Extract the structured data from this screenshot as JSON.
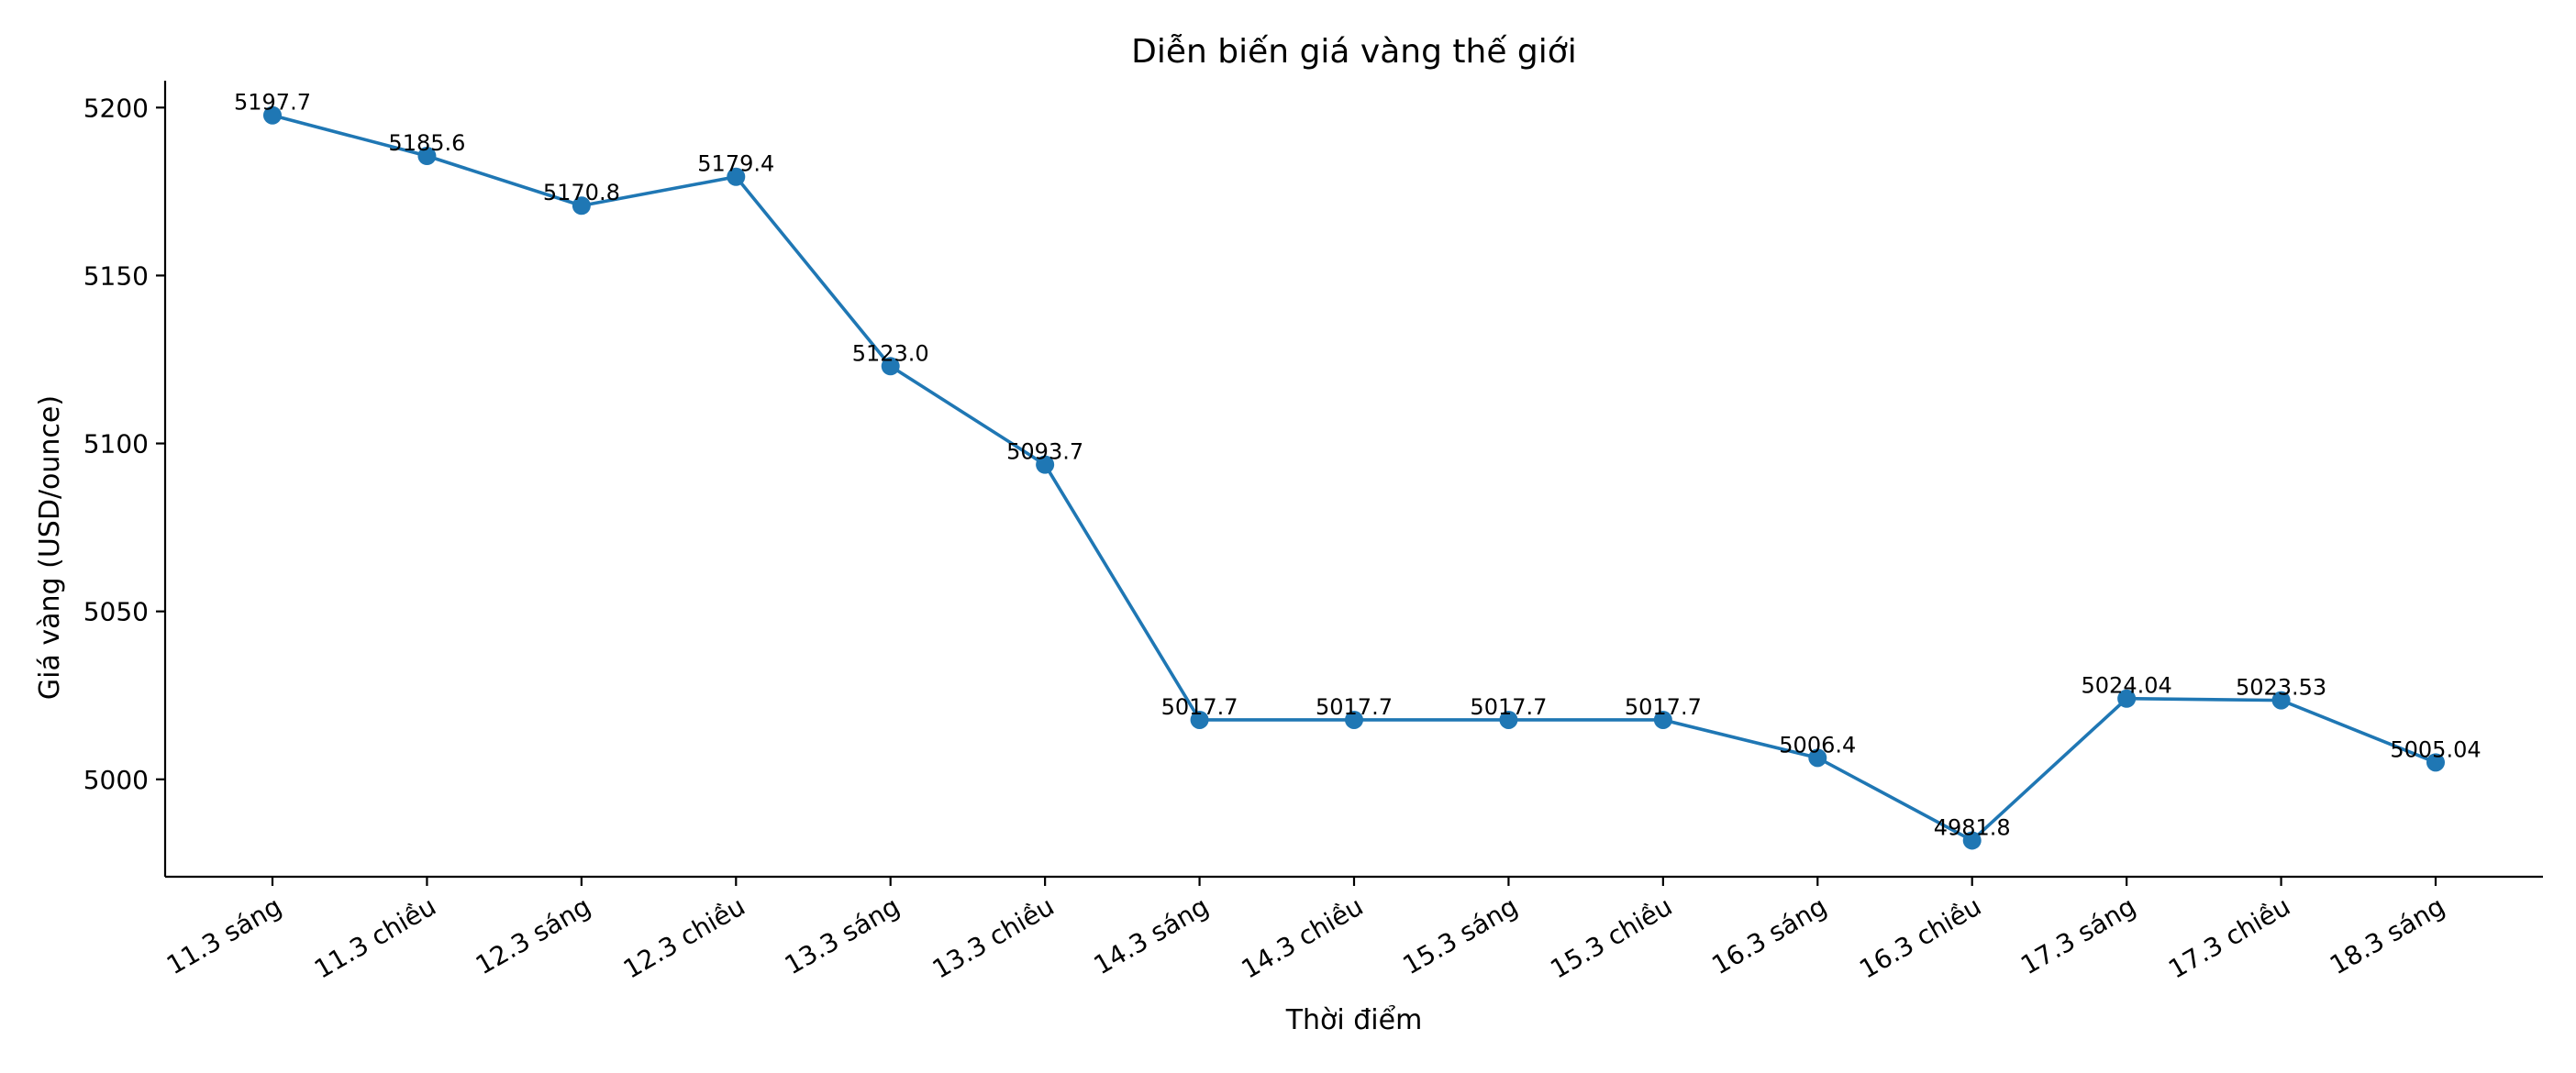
{
  "chart_data": {
    "type": "line",
    "title": "Diễn biến giá vàng thế giới",
    "xlabel": "Thời điểm",
    "ylabel": "Giá vàng (USD/ounce)",
    "categories": [
      "11.3 sáng",
      "11.3 chiều",
      "12.3 sáng",
      "12.3 chiều",
      "13.3 sáng",
      "13.3 chiều",
      "14.3 sáng",
      "14.3 chiều",
      "15.3 sáng",
      "15.3 chiều",
      "16.3 sáng",
      "16.3 chiều",
      "17.3 sáng",
      "17.3 chiều",
      "18.3 sáng"
    ],
    "series": [
      {
        "values": [
          5197.7,
          5185.6,
          5170.8,
          5179.4,
          5123.0,
          5093.7,
          5017.7,
          5017.7,
          5017.7,
          5017.7,
          5006.4,
          4981.8,
          5024.04,
          5023.53,
          5005.04
        ],
        "point_labels": [
          "5197.7",
          "5185.6",
          "5170.8",
          "5179.4",
          "5123.0",
          "5093.7",
          "5017.7",
          "5017.7",
          "5017.7",
          "5017.7",
          "5006.4",
          "4981.8",
          "5024.04",
          "5023.53",
          "5005.04"
        ],
        "color": "#1f77b4"
      }
    ],
    "y_ticks": [
      5000,
      5050,
      5100,
      5150,
      5200
    ],
    "ylim": [
      4971,
      5208
    ],
    "grid": false,
    "legend": "none",
    "markers": true
  }
}
